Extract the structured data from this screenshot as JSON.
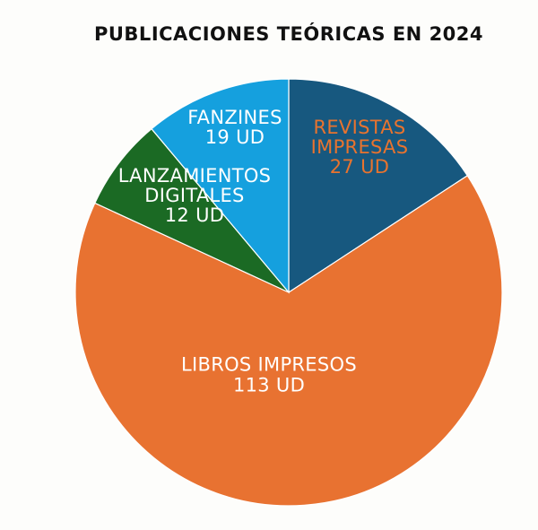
{
  "chart_data": {
    "type": "pie",
    "title": "PUBLICACIONES TEÓRICAS EN 2024",
    "slices": [
      {
        "label": "REVISTAS IMPRESAS",
        "value": 27,
        "value_text": "27 UD",
        "color": "#17587f",
        "text_color": "#e8732e"
      },
      {
        "label": "LIBROS IMPRESOS",
        "value": 113,
        "value_text": "113 UD",
        "color": "#e87231",
        "text_color": "#ffffff"
      },
      {
        "label": "LANZAMIENTOS DIGITALES",
        "value": 12,
        "value_text": "12 UD",
        "color": "#1b6a24",
        "text_color": "#ffffff"
      },
      {
        "label": "FANZINES",
        "value": 19,
        "value_text": "19 UD",
        "color": "#15a0de",
        "text_color": "#ffffff"
      }
    ],
    "start_angle": "12 o'clock",
    "direction": "clockwise",
    "legend": "none"
  }
}
